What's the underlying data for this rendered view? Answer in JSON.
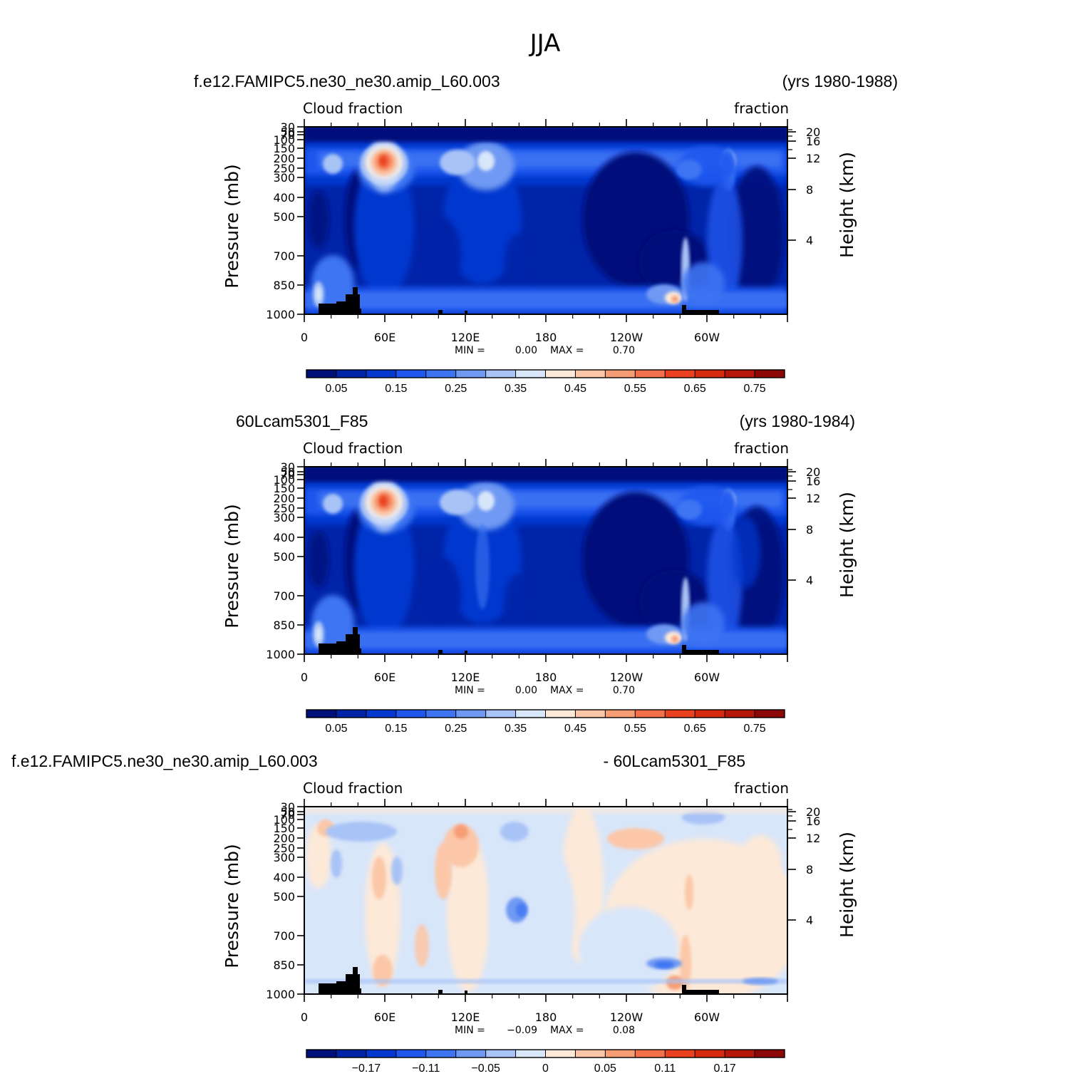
{
  "figure_title": "JJA",
  "chart_data": [
    {
      "type": "heatmap",
      "title_left": "f.e12.FAMIPC5.ne30_ne30.amip_L60.003",
      "title_right": "(yrs 1980-1988)",
      "left_string": "Cloud fraction",
      "right_string": "fraction",
      "ylabel": "Pressure (mb)",
      "ylabel2": "Height (km)",
      "x_ticklabels": [
        "0",
        "60E",
        "120E",
        "180",
        "120W",
        "60W"
      ],
      "y_ticklabels": [
        "30",
        "50",
        "70",
        "100",
        "150",
        "200",
        "250",
        "300",
        "400",
        "500",
        "700",
        "850",
        "1000"
      ],
      "y2_ticklabels": [
        "20",
        "16",
        "12",
        "8",
        "4"
      ],
      "min_text": "MIN =",
      "min_value": "0.00",
      "max_text": "MAX =",
      "max_value": "0.70",
      "colorbar_labels": [
        "0.05",
        "0.15",
        "0.25",
        "0.35",
        "0.45",
        "0.55",
        "0.65",
        "0.75"
      ],
      "colorbar_colors": [
        "#00107a",
        "#0024a8",
        "#0438cf",
        "#1e56ee",
        "#3d74f2",
        "#6f99f3",
        "#a8c3f6",
        "#d8e6fa",
        "#fde9d8",
        "#fbc7a8",
        "#f79d76",
        "#f3704a",
        "#ea4220",
        "#d62a0e",
        "#b5170a",
        "#8c0807"
      ],
      "lon_range": [
        0,
        360
      ],
      "pressure_range": [
        30,
        1000
      ]
    },
    {
      "type": "heatmap",
      "title_left": "60Lcam5301_F85",
      "title_right": "(yrs 1980-1984)",
      "left_string": "Cloud fraction",
      "right_string": "fraction",
      "ylabel": "Pressure (mb)",
      "ylabel2": "Height (km)",
      "x_ticklabels": [
        "0",
        "60E",
        "120E",
        "180",
        "120W",
        "60W"
      ],
      "y_ticklabels": [
        "30",
        "50",
        "70",
        "100",
        "150",
        "200",
        "250",
        "300",
        "400",
        "500",
        "700",
        "850",
        "1000"
      ],
      "y2_ticklabels": [
        "20",
        "16",
        "12",
        "8",
        "4"
      ],
      "min_text": "MIN =",
      "min_value": "0.00",
      "max_text": "MAX =",
      "max_value": "0.70",
      "colorbar_labels": [
        "0.05",
        "0.15",
        "0.25",
        "0.35",
        "0.45",
        "0.55",
        "0.65",
        "0.75"
      ],
      "colorbar_colors": [
        "#00107a",
        "#0024a8",
        "#0438cf",
        "#1e56ee",
        "#3d74f2",
        "#6f99f3",
        "#a8c3f6",
        "#d8e6fa",
        "#fde9d8",
        "#fbc7a8",
        "#f79d76",
        "#f3704a",
        "#ea4220",
        "#d62a0e",
        "#b5170a",
        "#8c0807"
      ],
      "lon_range": [
        0,
        360
      ],
      "pressure_range": [
        30,
        1000
      ]
    },
    {
      "type": "heatmap",
      "title_left": "f.e12.FAMIPC5.ne30_ne30.amip_L60.003",
      "title_right": "- 60Lcam5301_F85",
      "left_string": "Cloud fraction",
      "right_string": "fraction",
      "ylabel": "Pressure (mb)",
      "ylabel2": "Height (km)",
      "x_ticklabels": [
        "0",
        "60E",
        "120E",
        "180",
        "120W",
        "60W"
      ],
      "y_ticklabels": [
        "30",
        "50",
        "70",
        "100",
        "150",
        "200",
        "250",
        "300",
        "400",
        "500",
        "700",
        "850",
        "1000"
      ],
      "y2_ticklabels": [
        "20",
        "16",
        "12",
        "8",
        "4"
      ],
      "min_text": "MIN =",
      "min_value": "−0.09",
      "max_text": "MAX =",
      "max_value": "0.08",
      "colorbar_labels": [
        "−0.17",
        "−0.11",
        "−0.05",
        "0",
        "0.05",
        "0.11",
        "0.17"
      ],
      "colorbar_colors": [
        "#00107a",
        "#0024a8",
        "#0438cf",
        "#1e56ee",
        "#3d74f2",
        "#6f99f3",
        "#a8c3f6",
        "#d8e6fa",
        "#fde9d8",
        "#fbc7a8",
        "#f79d76",
        "#f3704a",
        "#ea4220",
        "#d62a0e",
        "#b5170a",
        "#8c0807"
      ],
      "lon_range": [
        0,
        360
      ],
      "pressure_range": [
        30,
        1000
      ]
    }
  ]
}
